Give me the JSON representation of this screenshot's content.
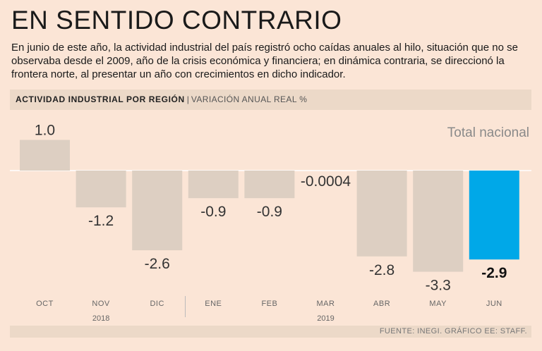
{
  "header": {
    "title": "EN SENTIDO CONTRARIO",
    "subtitle": "En junio de este año, la actividad industrial del país registró ocho caídas anuales al hilo, situación que no se observaba desde el 2009, año de la crisis económica y financiera; en dinámica contraria, se direccionó la frontera norte, al presentar un año con crecimientos en dicho indicador."
  },
  "chart_data": {
    "type": "bar",
    "title": "ACTIVIDAD INDUSTRIAL POR REGIÓN",
    "subtitle": "VARIACIÓN ANUAL REAL %",
    "series_name": "Total nacional",
    "categories": [
      "OCT",
      "NOV",
      "DIC",
      "ENE",
      "FEB",
      "MAR",
      "ABR",
      "MAY",
      "JUN"
    ],
    "values": [
      1.0,
      -1.2,
      -2.6,
      -0.9,
      -0.9,
      -0.0004,
      -2.8,
      -3.3,
      -2.9
    ],
    "value_labels": [
      "1.0",
      "-1.2",
      "-2.6",
      "-0.9",
      "-0.9",
      "-0.0004",
      "-2.8",
      "-3.3",
      "-2.9"
    ],
    "years": [
      {
        "label": "2018",
        "under": "NOV"
      },
      {
        "label": "2019",
        "under": "MAR"
      }
    ],
    "highlight_index": 8,
    "colors": {
      "bar": "#ddcfc2",
      "highlight": "#00a8e8",
      "axis": "#ffffff"
    },
    "source": "FUENTE: INEGI. GRÁFICO EE: STAFF."
  }
}
